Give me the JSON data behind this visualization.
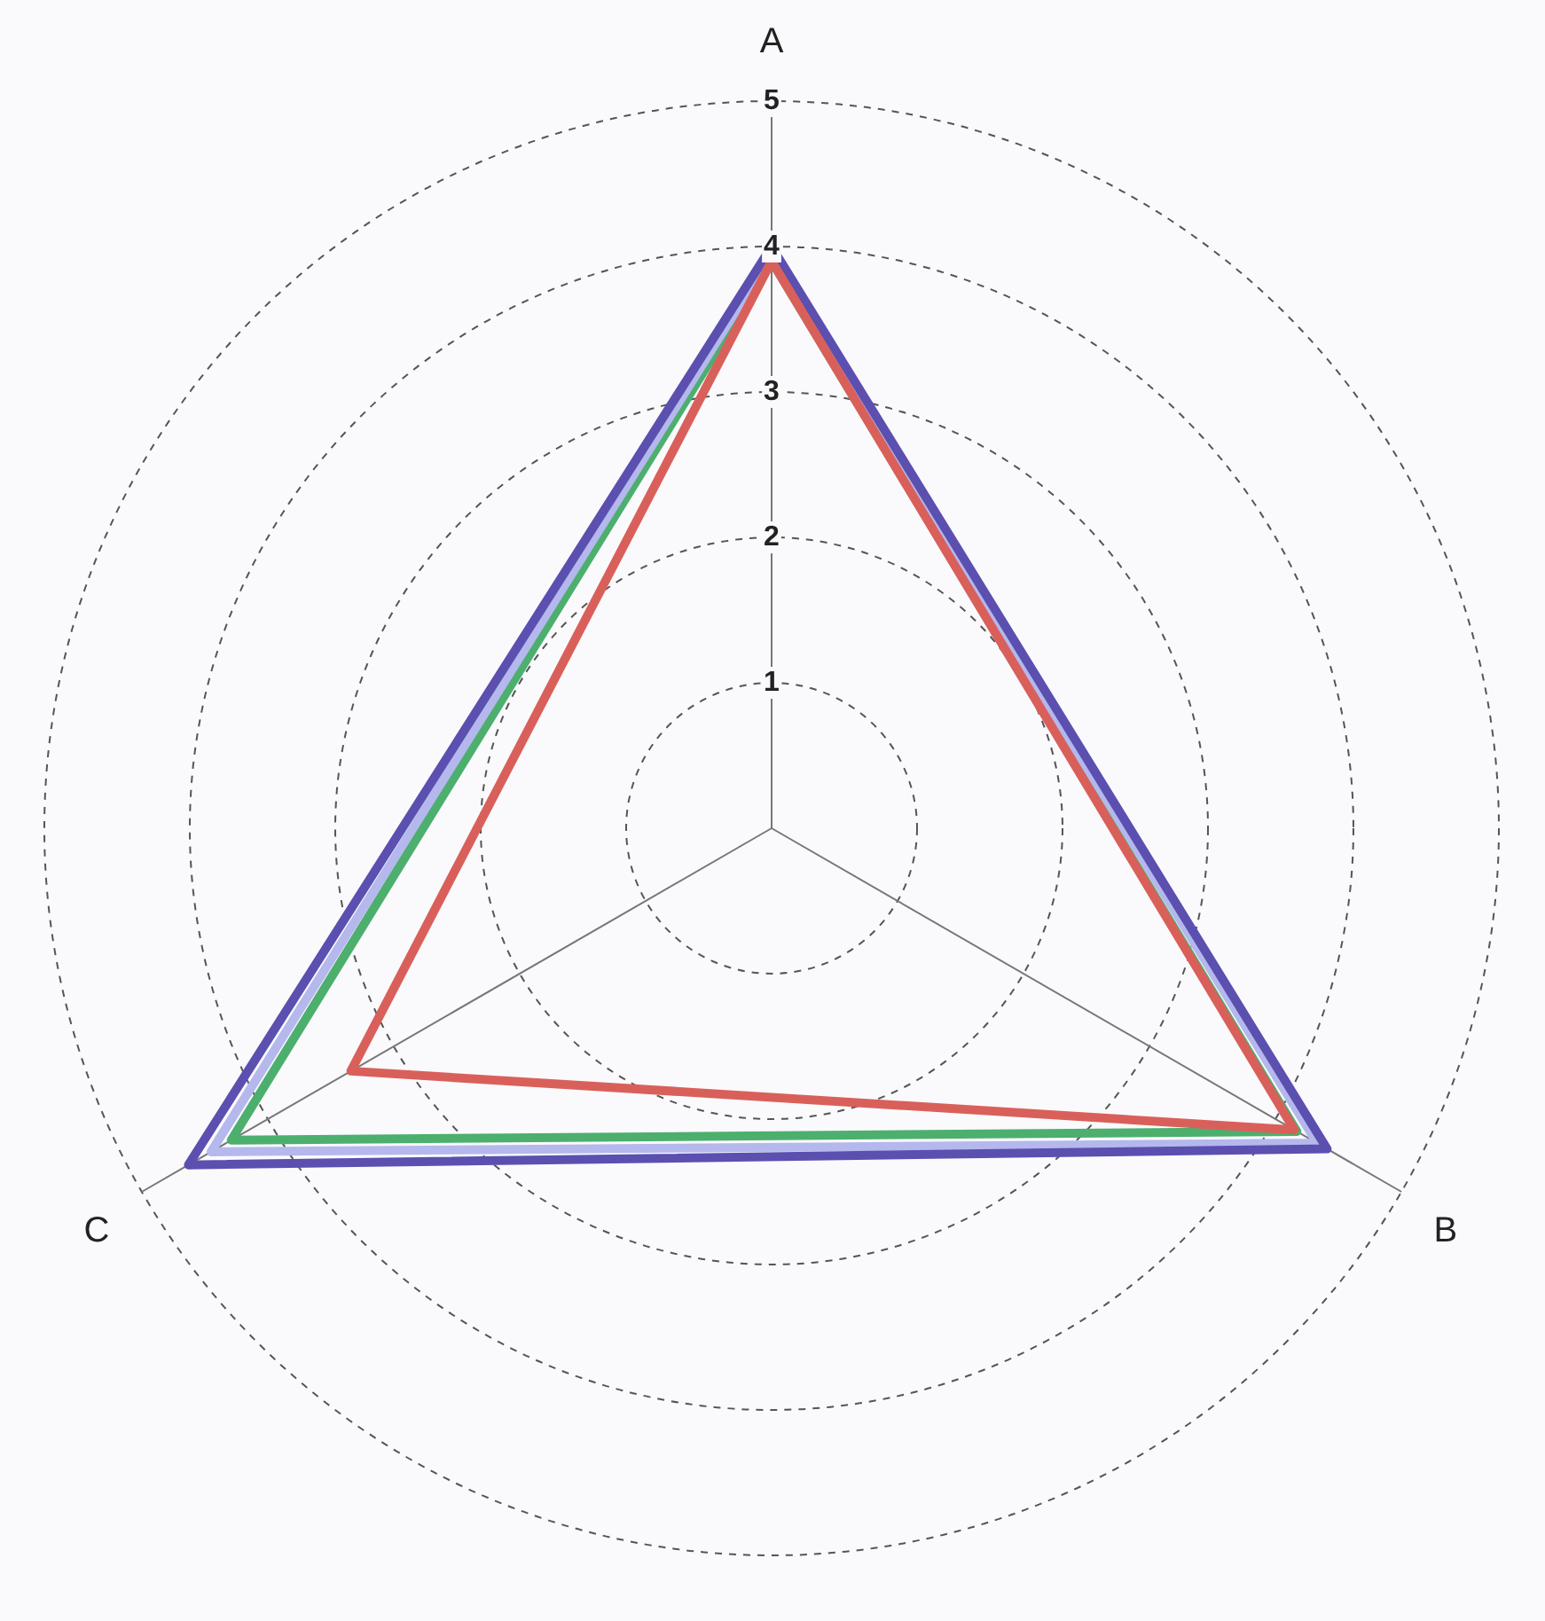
{
  "chart_data": {
    "type": "radar",
    "categories": [
      "A",
      "B",
      "C"
    ],
    "series": [
      {
        "color": "#d9605a",
        "values": [
          3.9,
          4.15,
          3.34
        ]
      },
      {
        "color": "#5b4fb0",
        "values": [
          4.0,
          4.41,
          4.63
        ]
      },
      {
        "color": "#b4b8ec",
        "values": [
          3.95,
          4.33,
          4.45
        ]
      },
      {
        "color": "#4caf6e",
        "values": [
          3.9,
          4.17,
          4.29
        ]
      }
    ],
    "ylim": [
      0,
      5
    ],
    "yticks": [
      1,
      2,
      3,
      4,
      5
    ],
    "grid": true,
    "marker": "none"
  }
}
